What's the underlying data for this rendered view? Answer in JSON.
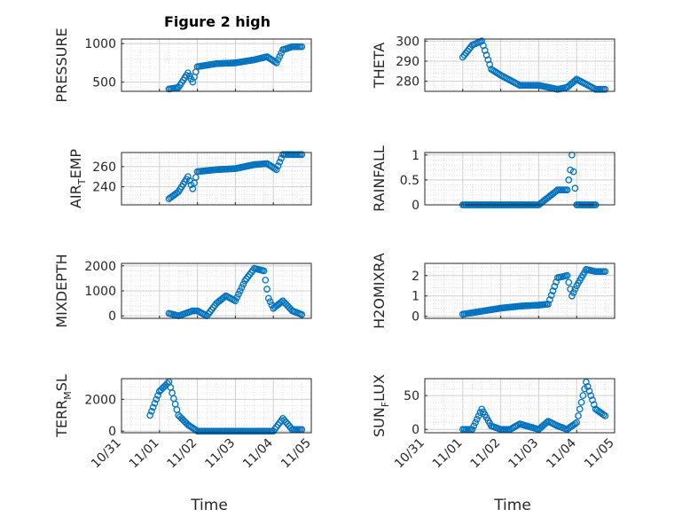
{
  "figure": {
    "title": "Figure 2 high",
    "marker_color": "#0072BD"
  },
  "chart_data": [
    {
      "type": "scatter",
      "ylabel": "PRESSURE",
      "title": "Figure 2 high",
      "xlim": [
        "10/31",
        "11/05"
      ],
      "ylim": [
        380,
        1060
      ],
      "yticks": [
        500,
        1000
      ],
      "grid": true,
      "minor_grid": true,
      "x": [
        "11/01 21:00",
        "11/01 06:00",
        "11/01 12:00",
        "11/01 18:00",
        "11/02 00:00",
        "11/02 12:00",
        "11/03 00:00",
        "11/03 12:00",
        "11/03 20:00",
        "11/04 02:00",
        "11/04 06:00",
        "11/04 12:00",
        "11/04 18:00"
      ],
      "y": [
        500,
        410,
        430,
        620,
        700,
        740,
        750,
        790,
        830,
        750,
        920,
        960,
        960
      ]
    },
    {
      "type": "scatter",
      "ylabel": "THETA",
      "xlim": [
        "10/31",
        "11/05"
      ],
      "ylim": [
        275,
        301
      ],
      "yticks": [
        280,
        290,
        300
      ],
      "grid": true,
      "minor_grid": true,
      "x": [
        "11/01 00:00",
        "11/01 06:00",
        "11/01 12:00",
        "11/01 18:00",
        "11/02 00:00",
        "11/02 12:00",
        "11/03 00:00",
        "11/03 06:00",
        "11/03 12:00",
        "11/03 18:00",
        "11/04 00:00",
        "11/04 12:00",
        "11/04 18:00"
      ],
      "y": [
        292,
        298,
        300,
        286,
        283,
        278,
        278,
        277,
        276,
        277,
        281,
        276,
        276
      ]
    },
    {
      "type": "scatter",
      "ylabel": "AIR_TEMP",
      "ylabel_sub": "T",
      "xlim": [
        "10/31",
        "11/05"
      ],
      "ylim": [
        222,
        274
      ],
      "yticks": [
        240,
        260
      ],
      "grid": true,
      "minor_grid": true,
      "x": [
        "11/01 21:00",
        "11/01 06:00",
        "11/01 12:00",
        "11/01 18:00",
        "11/02 00:00",
        "11/02 12:00",
        "11/03 00:00",
        "11/03 12:00",
        "11/03 20:00",
        "11/04 02:00",
        "11/04 06:00",
        "11/04 12:00",
        "11/04 18:00"
      ],
      "y": [
        238,
        228,
        235,
        250,
        255,
        257,
        258,
        262,
        263,
        257,
        272,
        272,
        272
      ]
    },
    {
      "type": "scatter",
      "ylabel": "RAINFALL",
      "xlim": [
        "10/31",
        "11/05"
      ],
      "ylim": [
        0,
        1.05
      ],
      "yticks": [
        0,
        0.5,
        1
      ],
      "grid": true,
      "minor_grid": true,
      "x": [
        "11/01 00:00",
        "11/02 00:00",
        "11/03 00:00",
        "11/03 12:00",
        "11/03 18:00",
        "11/03 20:00",
        "11/03 21:00",
        "11/04 00:00",
        "11/04 12:00"
      ],
      "y": [
        0,
        0,
        0,
        0.3,
        0.3,
        0.7,
        1,
        0,
        0
      ]
    },
    {
      "type": "scatter",
      "ylabel": "MIXDEPTH",
      "xlim": [
        "10/31",
        "11/05"
      ],
      "ylim": [
        -100,
        2100
      ],
      "yticks": [
        0,
        1000,
        2000
      ],
      "grid": true,
      "minor_grid": true,
      "x": [
        "11/01 21:00",
        "11/01 06:00",
        "11/01 12:00",
        "11/02 00:00",
        "11/02 06:00",
        "11/02 12:00",
        "11/02 18:00",
        "11/03 00:00",
        "11/03 06:00",
        "11/03 12:00",
        "11/03 18:00",
        "11/03 21:00",
        "11/04 00:00",
        "11/04 06:00",
        "11/04 12:00",
        "11/04 18:00"
      ],
      "y": [
        200,
        100,
        0,
        200,
        0,
        500,
        800,
        600,
        1400,
        1900,
        1800,
        700,
        300,
        600,
        200,
        50
      ]
    },
    {
      "type": "scatter",
      "ylabel": "H2OMIXRA",
      "xlim": [
        "10/31",
        "11/05"
      ],
      "ylim": [
        -0.1,
        2.6
      ],
      "yticks": [
        0,
        1,
        2
      ],
      "grid": true,
      "minor_grid": true,
      "x": [
        "11/01 00:00",
        "11/01 12:00",
        "11/02 00:00",
        "11/02 12:00",
        "11/03 00:00",
        "11/03 06:00",
        "11/03 12:00",
        "11/03 18:00",
        "11/03 21:00",
        "11/04 00:00",
        "11/04 06:00",
        "11/04 12:00",
        "11/04 18:00"
      ],
      "y": [
        0.1,
        0.25,
        0.4,
        0.5,
        0.55,
        0.6,
        1.9,
        2.0,
        1.0,
        1.5,
        2.3,
        2.2,
        2.2
      ]
    },
    {
      "type": "scatter",
      "ylabel": "TERR_MSL",
      "ylabel_sub": "M",
      "xlim": [
        "10/31",
        "11/05"
      ],
      "ylim": [
        -100,
        3300
      ],
      "yticks": [
        0,
        2000
      ],
      "xticks": [
        "10/31",
        "11/01",
        "11/02",
        "11/03",
        "11/04",
        "11/05"
      ],
      "xlabel": "Time",
      "grid": true,
      "minor_grid": true,
      "x": [
        "10/31 18:00",
        "11/01 00:00",
        "11/01 06:00",
        "11/01 12:00",
        "11/01 18:00",
        "11/02 00:00",
        "11/03 00:00",
        "11/04 00:00",
        "11/04 06:00",
        "11/04 12:00",
        "11/04 18:00"
      ],
      "y": [
        1000,
        2500,
        3100,
        1000,
        400,
        0,
        0,
        0,
        800,
        100,
        100
      ]
    },
    {
      "type": "scatter",
      "ylabel": "SUN_FLUX",
      "ylabel_sub": "F",
      "xlim": [
        "10/31",
        "11/05"
      ],
      "ylim": [
        -5,
        75
      ],
      "yticks": [
        0,
        50
      ],
      "xticks": [
        "10/31",
        "11/01",
        "11/02",
        "11/03",
        "11/04",
        "11/05"
      ],
      "xlabel": "Time",
      "grid": true,
      "minor_grid": true,
      "x": [
        "11/01 00:00",
        "11/01 06:00",
        "11/01 12:00",
        "11/01 18:00",
        "11/02 00:00",
        "11/02 06:00",
        "11/02 12:00",
        "11/03 00:00",
        "11/03 06:00",
        "11/03 12:00",
        "11/03 18:00",
        "11/04 00:00",
        "11/04 06:00",
        "11/04 12:00",
        "11/04 18:00"
      ],
      "y": [
        0,
        0,
        30,
        5,
        0,
        0,
        8,
        0,
        12,
        5,
        0,
        10,
        70,
        30,
        20
      ]
    }
  ]
}
